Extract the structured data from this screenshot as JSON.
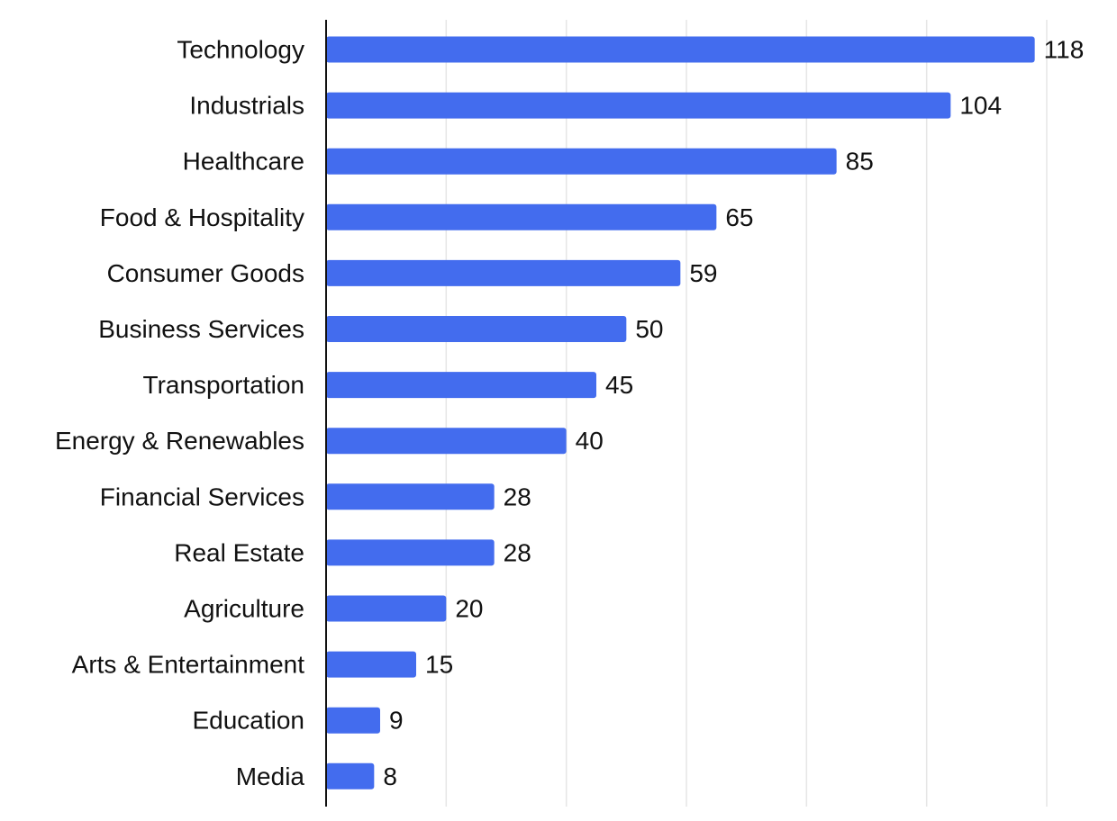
{
  "chart_data": {
    "type": "bar",
    "orientation": "horizontal",
    "title": "",
    "xlabel": "",
    "ylabel": "",
    "categories": [
      "Technology",
      "Industrials",
      "Healthcare",
      "Food & Hospitality",
      "Consumer Goods",
      "Business Services",
      "Transportation",
      "Energy & Renewables",
      "Financial Services",
      "Real Estate",
      "Agriculture",
      "Arts & Entertainment",
      "Education",
      "Media"
    ],
    "values": [
      118,
      104,
      85,
      65,
      59,
      50,
      45,
      40,
      28,
      28,
      20,
      15,
      9,
      8
    ],
    "xlim": [
      0,
      120
    ],
    "grid_step": 20,
    "grid": true,
    "legend": "none",
    "data_labels": true,
    "bar_color": "#436cee",
    "axis_color": "#111111",
    "grid_color": "#e6e6e6"
  }
}
